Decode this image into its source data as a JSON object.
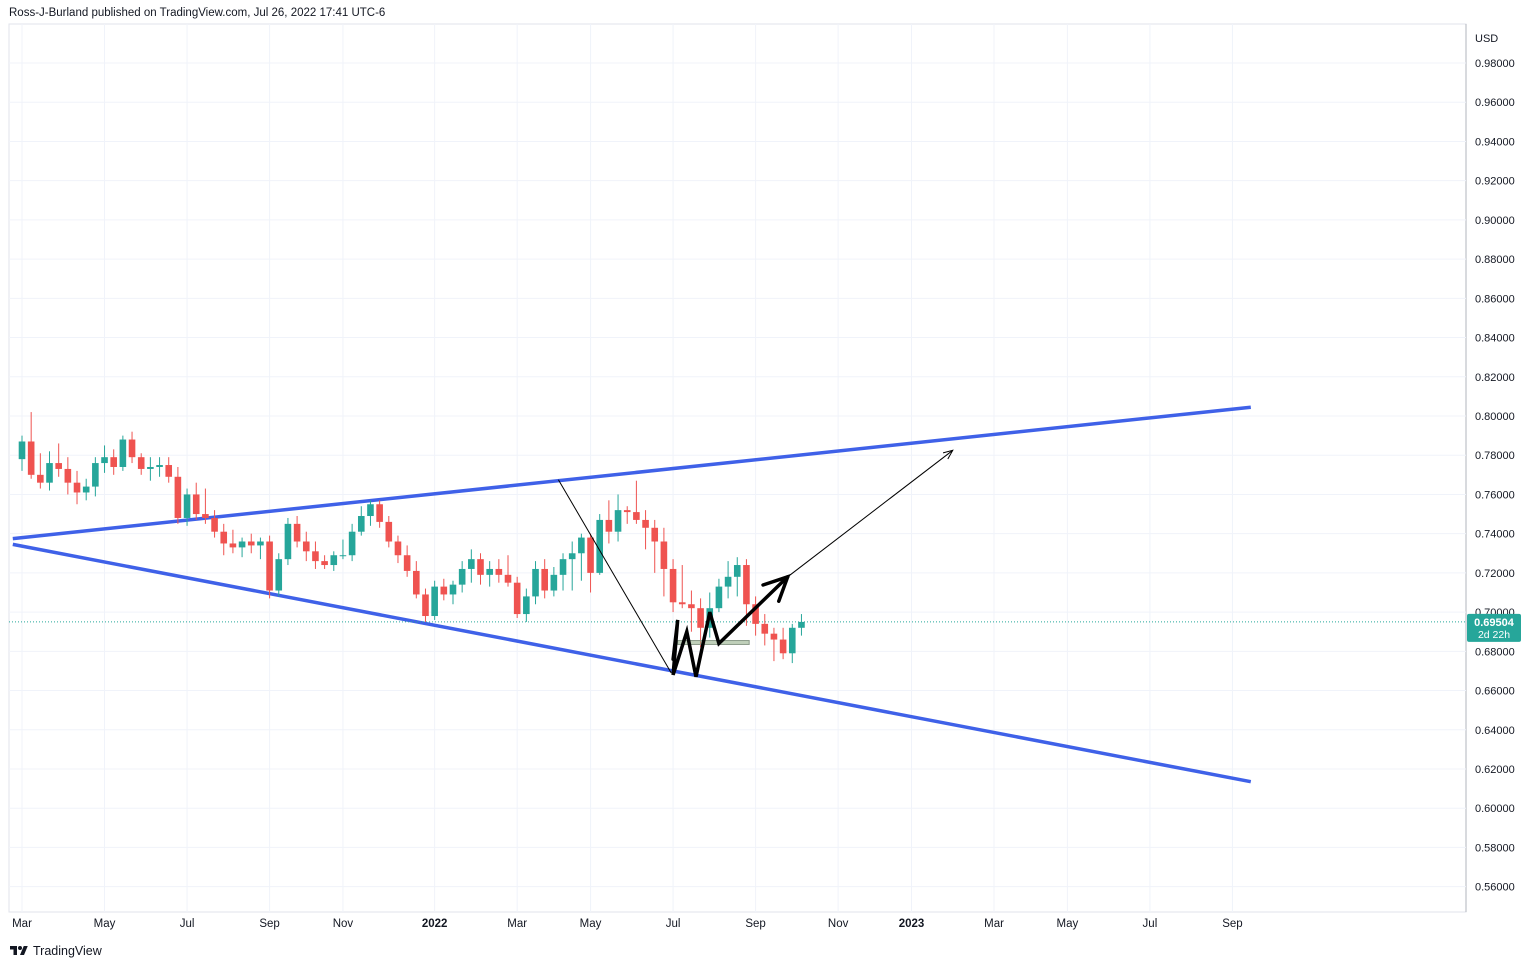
{
  "header": {
    "publisher_line": "Ross-J-Burland published on TradingView.com, Jul 26, 2022 17:41 UTC-6"
  },
  "footer": {
    "brand": "TradingView"
  },
  "colors": {
    "up": "#26a69a",
    "down": "#ef5350",
    "trendline": "#3f61e8",
    "price_line": "#26a69a",
    "grid": "#f0f3fa"
  },
  "chart_data": {
    "type": "candlestick",
    "currency": "USD",
    "y_ticks": [
      0.56,
      0.58,
      0.6,
      0.62,
      0.64,
      0.66,
      0.68,
      0.7,
      0.72,
      0.74,
      0.76,
      0.78,
      0.8,
      0.82,
      0.84,
      0.86,
      0.88,
      0.9,
      0.92,
      0.94,
      0.96,
      0.98
    ],
    "y_tick_labels": [
      "0.56000",
      "0.58000",
      "0.60000",
      "0.62000",
      "0.64000",
      "0.66000",
      "0.68000",
      "0.70000",
      "0.72000",
      "0.74000",
      "0.76000",
      "0.78000",
      "0.80000",
      "0.82000",
      "0.84000",
      "0.86000",
      "0.88000",
      "0.90000",
      "0.92000",
      "0.94000",
      "0.96000",
      "0.98000"
    ],
    "ylim": [
      0.548,
      1.0
    ],
    "x_labels": [
      {
        "text": "Mar",
        "week": 0,
        "bold": false
      },
      {
        "text": "May",
        "week": 9,
        "bold": false
      },
      {
        "text": "Jul",
        "week": 18,
        "bold": false
      },
      {
        "text": "Sep",
        "week": 27,
        "bold": false
      },
      {
        "text": "Nov",
        "week": 35,
        "bold": false
      },
      {
        "text": "2022",
        "week": 45,
        "bold": true
      },
      {
        "text": "Mar",
        "week": 54,
        "bold": false
      },
      {
        "text": "May",
        "week": 62,
        "bold": false
      },
      {
        "text": "Jul",
        "week": 71,
        "bold": false
      },
      {
        "text": "Sep",
        "week": 80,
        "bold": false
      },
      {
        "text": "Nov",
        "week": 89,
        "bold": false
      },
      {
        "text": "2023",
        "week": 97,
        "bold": true
      },
      {
        "text": "Mar",
        "week": 106,
        "bold": false
      },
      {
        "text": "May",
        "week": 114,
        "bold": false
      },
      {
        "text": "Jul",
        "week": 123,
        "bold": false
      },
      {
        "text": "Sep",
        "week": 132,
        "bold": false
      }
    ],
    "candles": [
      [
        0.778,
        0.79,
        0.772,
        0.787
      ],
      [
        0.787,
        0.802,
        0.768,
        0.77
      ],
      [
        0.77,
        0.781,
        0.763,
        0.766
      ],
      [
        0.766,
        0.782,
        0.762,
        0.776
      ],
      [
        0.776,
        0.786,
        0.769,
        0.773
      ],
      [
        0.773,
        0.779,
        0.76,
        0.766
      ],
      [
        0.766,
        0.772,
        0.755,
        0.761
      ],
      [
        0.761,
        0.768,
        0.757,
        0.764
      ],
      [
        0.764,
        0.779,
        0.759,
        0.776
      ],
      [
        0.776,
        0.785,
        0.771,
        0.779
      ],
      [
        0.779,
        0.783,
        0.77,
        0.774
      ],
      [
        0.774,
        0.79,
        0.772,
        0.788
      ],
      [
        0.788,
        0.792,
        0.776,
        0.779
      ],
      [
        0.779,
        0.781,
        0.77,
        0.773
      ],
      [
        0.773,
        0.779,
        0.767,
        0.774
      ],
      [
        0.774,
        0.779,
        0.769,
        0.775
      ],
      [
        0.775,
        0.779,
        0.766,
        0.769
      ],
      [
        0.769,
        0.774,
        0.745,
        0.748
      ],
      [
        0.748,
        0.763,
        0.744,
        0.76
      ],
      [
        0.76,
        0.766,
        0.747,
        0.75
      ],
      [
        0.75,
        0.763,
        0.745,
        0.748
      ],
      [
        0.748,
        0.752,
        0.738,
        0.741
      ],
      [
        0.741,
        0.745,
        0.729,
        0.735
      ],
      [
        0.735,
        0.742,
        0.73,
        0.733
      ],
      [
        0.733,
        0.738,
        0.728,
        0.736
      ],
      [
        0.736,
        0.74,
        0.73,
        0.734
      ],
      [
        0.734,
        0.738,
        0.727,
        0.736
      ],
      [
        0.736,
        0.739,
        0.707,
        0.711
      ],
      [
        0.711,
        0.73,
        0.708,
        0.727
      ],
      [
        0.727,
        0.748,
        0.724,
        0.745
      ],
      [
        0.745,
        0.749,
        0.733,
        0.736
      ],
      [
        0.736,
        0.741,
        0.726,
        0.731
      ],
      [
        0.731,
        0.736,
        0.722,
        0.726
      ],
      [
        0.726,
        0.729,
        0.722,
        0.724
      ],
      [
        0.724,
        0.731,
        0.721,
        0.729
      ],
      [
        0.729,
        0.737,
        0.727,
        0.729
      ],
      [
        0.729,
        0.745,
        0.726,
        0.741
      ],
      [
        0.741,
        0.754,
        0.739,
        0.749
      ],
      [
        0.749,
        0.757,
        0.744,
        0.755
      ],
      [
        0.755,
        0.757,
        0.743,
        0.746
      ],
      [
        0.746,
        0.749,
        0.733,
        0.736
      ],
      [
        0.736,
        0.739,
        0.725,
        0.729
      ],
      [
        0.729,
        0.734,
        0.718,
        0.721
      ],
      [
        0.721,
        0.726,
        0.707,
        0.709
      ],
      [
        0.709,
        0.712,
        0.695,
        0.698
      ],
      [
        0.698,
        0.716,
        0.696,
        0.713
      ],
      [
        0.713,
        0.717,
        0.706,
        0.709
      ],
      [
        0.709,
        0.716,
        0.704,
        0.714
      ],
      [
        0.714,
        0.726,
        0.71,
        0.722
      ],
      [
        0.722,
        0.732,
        0.715,
        0.727
      ],
      [
        0.727,
        0.73,
        0.714,
        0.719
      ],
      [
        0.719,
        0.726,
        0.713,
        0.722
      ],
      [
        0.722,
        0.727,
        0.715,
        0.719
      ],
      [
        0.719,
        0.729,
        0.713,
        0.715
      ],
      [
        0.715,
        0.718,
        0.697,
        0.699
      ],
      [
        0.699,
        0.712,
        0.695,
        0.708
      ],
      [
        0.708,
        0.726,
        0.704,
        0.722
      ],
      [
        0.722,
        0.727,
        0.707,
        0.711
      ],
      [
        0.711,
        0.723,
        0.708,
        0.719
      ],
      [
        0.719,
        0.73,
        0.711,
        0.727
      ],
      [
        0.727,
        0.736,
        0.711,
        0.73
      ],
      [
        0.73,
        0.74,
        0.716,
        0.738
      ],
      [
        0.738,
        0.74,
        0.71,
        0.72
      ],
      [
        0.72,
        0.75,
        0.719,
        0.747
      ],
      [
        0.747,
        0.757,
        0.735,
        0.741
      ],
      [
        0.741,
        0.76,
        0.736,
        0.752
      ],
      [
        0.752,
        0.754,
        0.745,
        0.751
      ],
      [
        0.751,
        0.767,
        0.745,
        0.747
      ],
      [
        0.747,
        0.752,
        0.732,
        0.743
      ],
      [
        0.743,
        0.747,
        0.72,
        0.736
      ],
      [
        0.736,
        0.743,
        0.708,
        0.722
      ],
      [
        0.722,
        0.727,
        0.7,
        0.705
      ],
      [
        0.705,
        0.724,
        0.702,
        0.704
      ],
      [
        0.704,
        0.711,
        0.69,
        0.702
      ],
      [
        0.702,
        0.707,
        0.682,
        0.692
      ],
      [
        0.692,
        0.71,
        0.687,
        0.702
      ],
      [
        0.702,
        0.717,
        0.7,
        0.713
      ],
      [
        0.713,
        0.726,
        0.707,
        0.718
      ],
      [
        0.718,
        0.728,
        0.708,
        0.724
      ],
      [
        0.724,
        0.727,
        0.693,
        0.704
      ],
      [
        0.704,
        0.708,
        0.688,
        0.694
      ],
      [
        0.694,
        0.699,
        0.683,
        0.689
      ],
      [
        0.689,
        0.692,
        0.675,
        0.686
      ],
      [
        0.686,
        0.692,
        0.676,
        0.679
      ],
      [
        0.679,
        0.694,
        0.674,
        0.692
      ],
      [
        0.692,
        0.699,
        0.688,
        0.695
      ]
    ],
    "last_price": 0.69504,
    "last_price_label": "0.69504",
    "countdown_label": "2d 22h",
    "annotations": {
      "upper_trendline": [
        [
          -1,
          0.7375
        ],
        [
          134,
          0.8045
        ]
      ],
      "lower_trendline": [
        [
          -1,
          0.7345
        ],
        [
          134,
          0.6135
        ]
      ],
      "thin_down_line": [
        [
          58.5,
          0.7675
        ],
        [
          70.8,
          0.669
        ]
      ],
      "zigzag": [
        [
          71.0,
          0.676
        ],
        [
          71.5,
          0.696
        ],
        [
          71.0,
          0.668
        ],
        [
          72.5,
          0.69
        ],
        [
          73.5,
          0.667
        ],
        [
          75.0,
          0.7
        ],
        [
          76.0,
          0.684
        ],
        [
          83.5,
          0.718
        ]
      ],
      "arrow": [
        [
          83.5,
          0.718
        ],
        [
          101.5,
          0.7825
        ]
      ],
      "support_box": {
        "x0": 71.5,
        "x1": 79.3,
        "y0": 0.6855,
        "y1": 0.6835
      }
    }
  }
}
